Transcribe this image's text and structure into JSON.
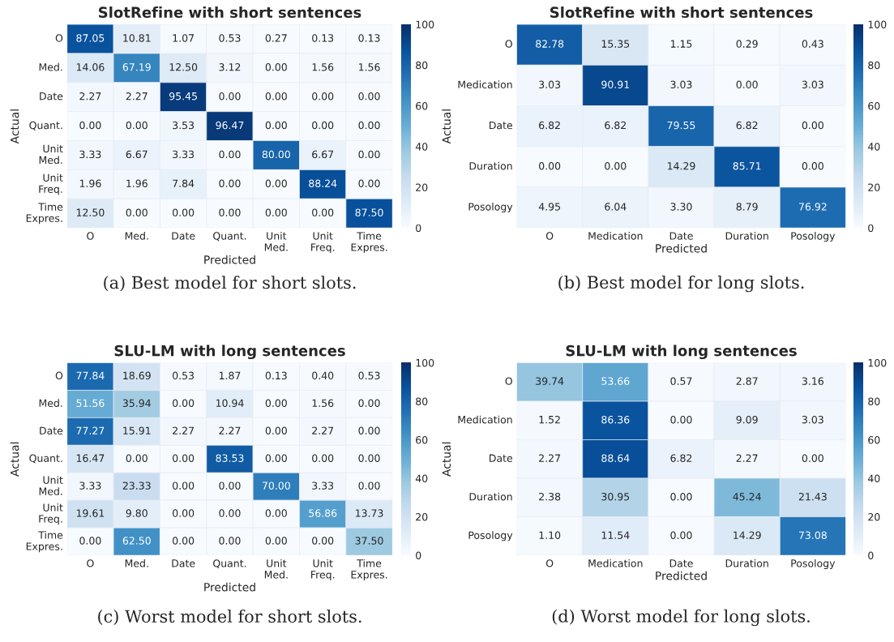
{
  "chart_data": [
    {
      "type": "heatmap",
      "title": "SlotRefine with short sentences",
      "xlabel": "Predicted",
      "ylabel": "Actual",
      "categories": [
        "O",
        "Med.",
        "Date",
        "Quant.",
        "Unit\nMed.",
        "Unit\nFreq.",
        "Time\nExpres."
      ],
      "y_categories": [
        "O",
        "Med.",
        "Date",
        "Quant.",
        "Unit\nMed.",
        "Unit\nFreq.",
        "Time\nExpres."
      ],
      "cells": [
        [
          87.05,
          10.81,
          1.07,
          0.53,
          0.27,
          0.13,
          0.13
        ],
        [
          14.06,
          67.19,
          12.5,
          3.12,
          0,
          1.56,
          1.56
        ],
        [
          2.27,
          2.27,
          95.45,
          0,
          0,
          0,
          0
        ],
        [
          0,
          0,
          3.53,
          96.47,
          0,
          0,
          0
        ],
        [
          3.33,
          6.67,
          3.33,
          0,
          80,
          6.67,
          0
        ],
        [
          1.96,
          1.96,
          7.84,
          0,
          0,
          88.24,
          0
        ],
        [
          12.5,
          0,
          0,
          0,
          0,
          0,
          87.5
        ]
      ],
      "cell_labels": [
        [
          "87.05",
          "10.81",
          "1.07",
          "0.53",
          "0.27",
          "0.13",
          "0.13"
        ],
        [
          "14.06",
          "67.19",
          "12.50",
          "3.12",
          "0.00",
          "1.56",
          "1.56"
        ],
        [
          "2.27",
          "2.27",
          "95.45",
          "0.00",
          "0.00",
          "0.00",
          "0.00"
        ],
        [
          "0.00",
          "0.00",
          "3.53",
          "96.47",
          "0.00",
          "0.00",
          "0.00"
        ],
        [
          "3.33",
          "6.67",
          "3.33",
          "0.00",
          "80.00",
          "6.67",
          "0.00"
        ],
        [
          "1.96",
          "1.96",
          "7.84",
          "0.00",
          "0.00",
          "88.24",
          "0.00"
        ],
        [
          "12.50",
          "0.00",
          "0.00",
          "0.00",
          "0.00",
          "0.00",
          "87.50"
        ]
      ],
      "clim": [
        0,
        100
      ],
      "cticks": [
        0,
        20,
        40,
        60,
        80,
        100
      ],
      "annotations": [
        "(a) Best model for short slots."
      ]
    },
    {
      "type": "heatmap",
      "title": "SlotRefine with short sentences",
      "xlabel": "Predicted",
      "ylabel": "Actual",
      "categories": [
        "O",
        "Medication",
        "Date",
        "Duration",
        "Posology"
      ],
      "y_categories": [
        "O",
        "Medication",
        "Date",
        "Duration",
        "Posology"
      ],
      "cells": [
        [
          82.78,
          15.35,
          1.15,
          0.29,
          0.43
        ],
        [
          3.03,
          90.91,
          3.03,
          0,
          3.03
        ],
        [
          6.82,
          6.82,
          79.55,
          6.82,
          0
        ],
        [
          0,
          0,
          14.29,
          85.71,
          0
        ],
        [
          4.95,
          6.04,
          3.3,
          8.79,
          76.92
        ]
      ],
      "cell_labels": [
        [
          "82.78",
          "15.35",
          "1.15",
          "0.29",
          "0.43"
        ],
        [
          "3.03",
          "90.91",
          "3.03",
          "0.00",
          "3.03"
        ],
        [
          "6.82",
          "6.82",
          "79.55",
          "6.82",
          "0.00"
        ],
        [
          "0.00",
          "0.00",
          "14.29",
          "85.71",
          "0.00"
        ],
        [
          "4.95",
          "6.04",
          "3.30",
          "8.79",
          "76.92"
        ]
      ],
      "clim": [
        0,
        100
      ],
      "cticks": [
        0,
        20,
        40,
        60,
        80,
        100
      ],
      "annotations": [
        "(b) Best model for long slots."
      ]
    },
    {
      "type": "heatmap",
      "title": "SLU-LM with long sentences",
      "xlabel": "Predicted",
      "ylabel": "Actual",
      "categories": [
        "O",
        "Med.",
        "Date",
        "Quant.",
        "Unit\nMed.",
        "Unit\nFreq.",
        "Time\nExpres."
      ],
      "y_categories": [
        "O",
        "Med.",
        "Date",
        "Quant.",
        "Unit\nMed.",
        "Unit\nFreq.",
        "Time\nExpres."
      ],
      "cells": [
        [
          77.84,
          18.69,
          0.53,
          1.87,
          0.13,
          0.4,
          0.53
        ],
        [
          51.56,
          35.94,
          0,
          10.94,
          0,
          1.56,
          0
        ],
        [
          77.27,
          15.91,
          2.27,
          2.27,
          0,
          2.27,
          0
        ],
        [
          16.47,
          0,
          0,
          83.53,
          0,
          0,
          0
        ],
        [
          3.33,
          23.33,
          0,
          0,
          70,
          3.33,
          0
        ],
        [
          19.61,
          9.8,
          0,
          0,
          0,
          56.86,
          13.73
        ],
        [
          0,
          62.5,
          0,
          0,
          0,
          0,
          37.5
        ]
      ],
      "cell_labels": [
        [
          "77.84",
          "18.69",
          "0.53",
          "1.87",
          "0.13",
          "0.40",
          "0.53"
        ],
        [
          "51.56",
          "35.94",
          "0.00",
          "10.94",
          "0.00",
          "1.56",
          "0.00"
        ],
        [
          "77.27",
          "15.91",
          "2.27",
          "2.27",
          "0.00",
          "2.27",
          "0.00"
        ],
        [
          "16.47",
          "0.00",
          "0.00",
          "83.53",
          "0.00",
          "0.00",
          "0.00"
        ],
        [
          "3.33",
          "23.33",
          "0.00",
          "0.00",
          "70.00",
          "3.33",
          "0.00"
        ],
        [
          "19.61",
          "9.80",
          "0.00",
          "0.00",
          "0.00",
          "56.86",
          "13.73"
        ],
        [
          "0.00",
          "62.50",
          "0.00",
          "0.00",
          "0.00",
          "0.00",
          "37.50"
        ]
      ],
      "clim": [
        0,
        100
      ],
      "cticks": [
        0,
        20,
        40,
        60,
        80,
        100
      ],
      "annotations": [
        "(c) Worst model for short slots."
      ]
    },
    {
      "type": "heatmap",
      "title": "SLU-LM with long sentences",
      "xlabel": "Predicted",
      "ylabel": "Actual",
      "categories": [
        "O",
        "Medication",
        "Date",
        "Duration",
        "Posology"
      ],
      "y_categories": [
        "O",
        "Medication",
        "Date",
        "Duration",
        "Posology"
      ],
      "cells": [
        [
          39.74,
          53.66,
          0.57,
          2.87,
          3.16
        ],
        [
          1.52,
          86.36,
          0,
          9.09,
          3.03
        ],
        [
          2.27,
          88.64,
          6.82,
          2.27,
          0
        ],
        [
          2.38,
          30.95,
          0,
          45.24,
          21.43
        ],
        [
          1.1,
          11.54,
          0,
          14.29,
          73.08
        ]
      ],
      "cell_labels": [
        [
          "39.74",
          "53.66",
          "0.57",
          "2.87",
          "3.16"
        ],
        [
          "1.52",
          "86.36",
          "0.00",
          "9.09",
          "3.03"
        ],
        [
          "2.27",
          "88.64",
          "6.82",
          "2.27",
          "0.00"
        ],
        [
          "2.38",
          "30.95",
          "0.00",
          "45.24",
          "21.43"
        ],
        [
          "1.10",
          "11.54",
          "0.00",
          "14.29",
          "73.08"
        ]
      ],
      "clim": [
        0,
        100
      ],
      "cticks": [
        0,
        20,
        40,
        60,
        80,
        100
      ],
      "annotations": [
        "(d) Worst model for long slots."
      ]
    }
  ]
}
